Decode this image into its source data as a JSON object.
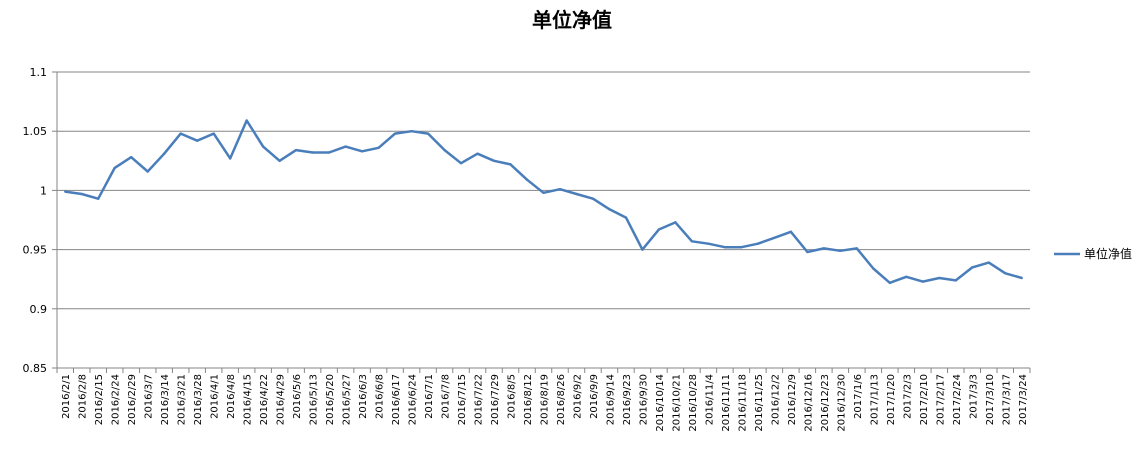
{
  "chart_data": {
    "type": "line",
    "title": "单位净值",
    "xlabel": "",
    "ylabel": "",
    "ylim": [
      0.85,
      1.1
    ],
    "yticks": [
      "0.85",
      "0.9",
      "0.95",
      "1",
      "1.05",
      "1.1"
    ],
    "grid": true,
    "legend_position": "right",
    "line_color": "#4a7ebb",
    "x_tick_labels": [
      "2016/2/1",
      "2016/2/8",
      "2016/2/15",
      "2016/2/24",
      "2016/2/29",
      "2016/3/7",
      "2016/3/14",
      "2016/3/21",
      "2016/3/28",
      "2016/4/1",
      "2016/4/8",
      "2016/4/15",
      "2016/4/22",
      "2016/4/29",
      "2016/5/6",
      "2016/5/13",
      "2016/5/20",
      "2016/5/27",
      "2016/6/3",
      "2016/6/8",
      "2016/6/17",
      "2016/6/24",
      "2016/7/1",
      "2016/7/8",
      "2016/7/15",
      "2016/7/22",
      "2016/7/29",
      "2016/8/5",
      "2016/8/12",
      "2016/8/19",
      "2016/8/26",
      "2016/9/2",
      "2016/9/9",
      "2016/9/14",
      "2016/9/23",
      "2016/9/30",
      "2016/10/14",
      "2016/10/21",
      "2016/10/28",
      "2016/11/4",
      "2016/11/11",
      "2016/11/18",
      "2016/11/25",
      "2016/12/2",
      "2016/12/9",
      "2016/12/16",
      "2016/12/23",
      "2016/12/30",
      "2017/1/6",
      "2017/1/13",
      "2017/1/20",
      "2017/2/3",
      "2017/2/10",
      "2017/2/17",
      "2017/2/24",
      "2017/3/3",
      "2017/3/10",
      "2017/3/17",
      "2017/3/24"
    ],
    "series": [
      {
        "name": "单位净值",
        "values": [
          0.999,
          0.997,
          0.993,
          1.019,
          1.028,
          1.016,
          1.031,
          1.048,
          1.042,
          1.048,
          1.027,
          1.059,
          1.037,
          1.025,
          1.034,
          1.032,
          1.032,
          1.037,
          1.033,
          1.036,
          1.048,
          1.05,
          1.048,
          1.034,
          1.023,
          1.031,
          1.025,
          1.022,
          1.009,
          0.998,
          1.001,
          0.997,
          0.993,
          0.984,
          0.977,
          0.95,
          0.967,
          0.973,
          0.957,
          0.955,
          0.952,
          0.952,
          0.955,
          0.96,
          0.965,
          0.948,
          0.951,
          0.949,
          0.951,
          0.934,
          0.922,
          0.927,
          0.923,
          0.926,
          0.924,
          0.935,
          0.939,
          0.93,
          0.926
        ]
      }
    ]
  }
}
